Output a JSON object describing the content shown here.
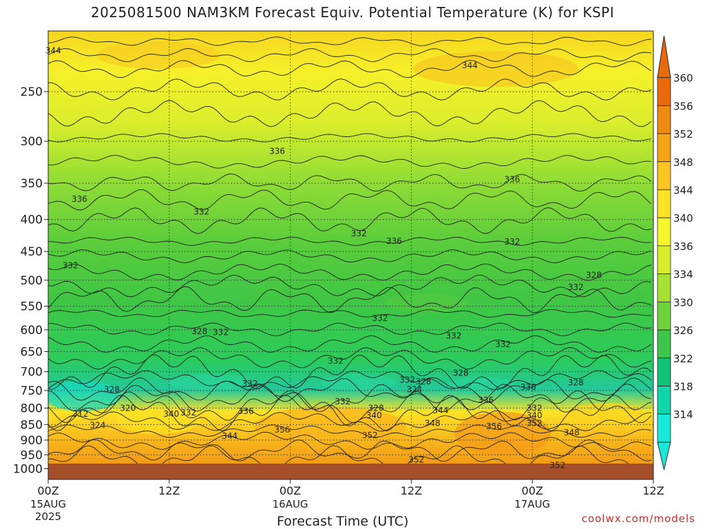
{
  "chart_data": {
    "type": "heatmap",
    "title": "2025081500 NAM3KM Forecast Equiv. Potential Temperature (K) for KSPI",
    "xlabel": "Forecast Time (UTC)",
    "ylabel": "",
    "y_ticks": [
      "250",
      "300",
      "350",
      "400",
      "450",
      "500",
      "550",
      "600",
      "650",
      "700",
      "750",
      "800",
      "850",
      "900",
      "950",
      "1000"
    ],
    "x_ticks": [
      {
        "hour": 0,
        "label": "00Z",
        "sub": "15AUG",
        "sub2": "2025"
      },
      {
        "hour": 12,
        "label": "12Z",
        "sub": "",
        "sub2": ""
      },
      {
        "hour": 24,
        "label": "00Z",
        "sub": "16AUG",
        "sub2": ""
      },
      {
        "hour": 36,
        "label": "12Z",
        "sub": "",
        "sub2": ""
      },
      {
        "hour": 48,
        "label": "00Z",
        "sub": "17AUG",
        "sub2": ""
      },
      {
        "hour": 60,
        "label": "12Z",
        "sub": "",
        "sub2": ""
      }
    ],
    "xlim": [
      0,
      60
    ],
    "ylim": [
      1040,
      200
    ],
    "grid": true,
    "y_scale": "log",
    "colorbar": {
      "ticks": [
        360,
        356,
        352,
        348,
        344,
        340,
        336,
        334,
        330,
        326,
        322,
        318,
        314
      ],
      "colors": [
        "#e86a0a",
        "#ef8a12",
        "#f5a41a",
        "#fac421",
        "#fde226",
        "#f7f52b",
        "#d8ee2c",
        "#a6e132",
        "#6ed33a",
        "#3ec64a",
        "#14c277",
        "#10d6a9",
        "#1ae8d8"
      ]
    },
    "contour_labels": [
      {
        "t": 0.5,
        "p": 215,
        "text": "344"
      },
      {
        "t": 41.8,
        "p": 227,
        "text": "344"
      },
      {
        "t": 22.7,
        "p": 311,
        "text": "336"
      },
      {
        "t": 46,
        "p": 345,
        "text": "336"
      },
      {
        "t": 3.1,
        "p": 371,
        "text": "336"
      },
      {
        "t": 15.2,
        "p": 389,
        "text": "332"
      },
      {
        "t": 30.8,
        "p": 421,
        "text": "332"
      },
      {
        "t": 34.3,
        "p": 433,
        "text": "336"
      },
      {
        "t": 46,
        "p": 434,
        "text": "332"
      },
      {
        "t": 2.2,
        "p": 474,
        "text": "332"
      },
      {
        "t": 54.1,
        "p": 491,
        "text": "328"
      },
      {
        "t": 52.3,
        "p": 513,
        "text": "332"
      },
      {
        "t": 32.9,
        "p": 575,
        "text": "332"
      },
      {
        "t": 15,
        "p": 603,
        "text": "328"
      },
      {
        "t": 17.1,
        "p": 606,
        "text": "332"
      },
      {
        "t": 40.2,
        "p": 613,
        "text": "332"
      },
      {
        "t": 45.1,
        "p": 633,
        "text": "332"
      },
      {
        "t": 28.5,
        "p": 673,
        "text": "332"
      },
      {
        "t": 40.9,
        "p": 703,
        "text": "328"
      },
      {
        "t": 35.6,
        "p": 721,
        "text": "332"
      },
      {
        "t": 37.2,
        "p": 726,
        "text": "328"
      },
      {
        "t": 20,
        "p": 731,
        "text": "332"
      },
      {
        "t": 47.6,
        "p": 741,
        "text": "336"
      },
      {
        "t": 52.3,
        "p": 729,
        "text": "328"
      },
      {
        "t": 6.3,
        "p": 747,
        "text": "328"
      },
      {
        "t": 36.3,
        "p": 747,
        "text": "324"
      },
      {
        "t": 43.4,
        "p": 777,
        "text": "336"
      },
      {
        "t": 29.2,
        "p": 781,
        "text": "332"
      },
      {
        "t": 7.9,
        "p": 800,
        "text": "320"
      },
      {
        "t": 32.5,
        "p": 800,
        "text": "328"
      },
      {
        "t": 48.2,
        "p": 800,
        "text": "332"
      },
      {
        "t": 38.9,
        "p": 807,
        "text": "344"
      },
      {
        "t": 19.6,
        "p": 809,
        "text": "336"
      },
      {
        "t": 3.2,
        "p": 818,
        "text": "312"
      },
      {
        "t": 12.2,
        "p": 818,
        "text": "340"
      },
      {
        "t": 13.9,
        "p": 813,
        "text": "332"
      },
      {
        "t": 32.3,
        "p": 822,
        "text": "340"
      },
      {
        "t": 48.2,
        "p": 822,
        "text": "340"
      },
      {
        "t": 38.1,
        "p": 846,
        "text": "348"
      },
      {
        "t": 48.2,
        "p": 846,
        "text": "352"
      },
      {
        "t": 4.9,
        "p": 853,
        "text": "324"
      },
      {
        "t": 44.2,
        "p": 856,
        "text": "356"
      },
      {
        "t": 23.2,
        "p": 867,
        "text": "356"
      },
      {
        "t": 51.9,
        "p": 876,
        "text": "348"
      },
      {
        "t": 18,
        "p": 887,
        "text": "344"
      },
      {
        "t": 31.9,
        "p": 884,
        "text": "352"
      },
      {
        "t": 36.5,
        "p": 967,
        "text": "352"
      },
      {
        "t": 50.5,
        "p": 987,
        "text": "352"
      }
    ]
  },
  "watermark": "coolwx.com/models"
}
